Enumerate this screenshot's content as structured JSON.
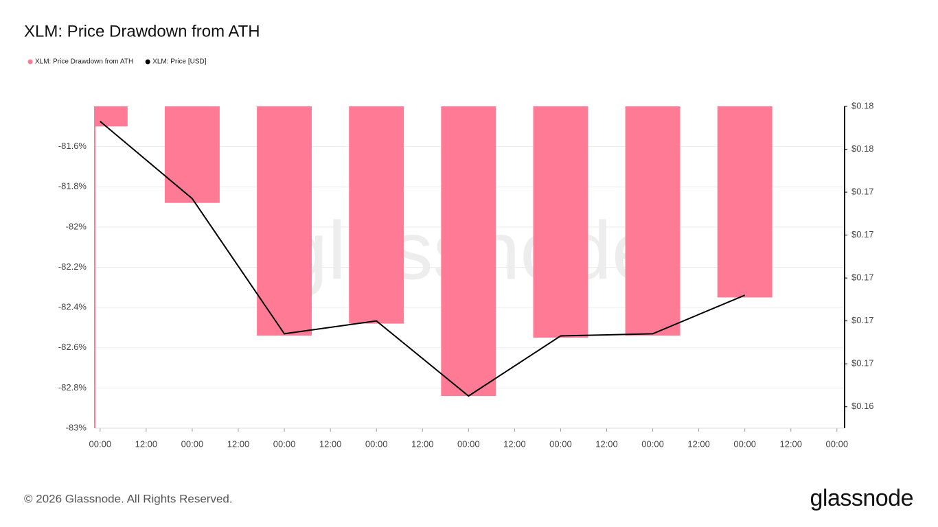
{
  "chart_data": {
    "type": "combo",
    "title": "XLM: Price Drawdown from ATH",
    "watermark": "glassnode",
    "x": [
      0,
      24,
      48,
      72,
      96,
      120,
      144,
      168
    ],
    "xlim": [
      -1.4,
      194
    ],
    "xticks": [
      {
        "value": 0,
        "label": "00:00"
      },
      {
        "value": 12,
        "label": "12:00"
      },
      {
        "value": 24,
        "label": "00:00"
      },
      {
        "value": 36,
        "label": "12:00"
      },
      {
        "value": 48,
        "label": "00:00"
      },
      {
        "value": 60,
        "label": "12:00"
      },
      {
        "value": 72,
        "label": "00:00"
      },
      {
        "value": 84,
        "label": "12:00"
      },
      {
        "value": 96,
        "label": "00:00"
      },
      {
        "value": 108,
        "label": "12:00"
      },
      {
        "value": 120,
        "label": "00:00"
      },
      {
        "value": 132,
        "label": "12:00"
      },
      {
        "value": 144,
        "label": "00:00"
      },
      {
        "value": 156,
        "label": "12:00"
      },
      {
        "value": 168,
        "label": "00:00"
      },
      {
        "value": 180,
        "label": "12:00"
      },
      {
        "value": 192,
        "label": "00:00"
      }
    ],
    "ylim": [
      -83,
      -81.4
    ],
    "yticks": [
      {
        "value": -83,
        "label": "-83%"
      },
      {
        "value": -82.8,
        "label": "-82.8%"
      },
      {
        "value": -82.6,
        "label": "-82.6%"
      },
      {
        "value": -82.4,
        "label": "-82.4%"
      },
      {
        "value": -82.2,
        "label": "-82.2%"
      },
      {
        "value": -82,
        "label": "-82%"
      },
      {
        "value": -81.8,
        "label": "-81.8%"
      },
      {
        "value": -81.6,
        "label": "-81.6%"
      }
    ],
    "y2lim": [
      0.162,
      0.177
    ],
    "y2ticks": [
      {
        "value": 0.163,
        "label": "$0.16"
      },
      {
        "value": 0.165,
        "label": "$0.17"
      },
      {
        "value": 0.167,
        "label": "$0.17"
      },
      {
        "value": 0.169,
        "label": "$0.17"
      },
      {
        "value": 0.171,
        "label": "$0.17"
      },
      {
        "value": 0.173,
        "label": "$0.17"
      },
      {
        "value": 0.175,
        "label": "$0.18"
      },
      {
        "value": 0.177,
        "label": "$0.18"
      }
    ],
    "grid": true,
    "series": [
      {
        "name": "XLM: Price Drawdown from ATH",
        "type": "bar",
        "color": "#ff7a95",
        "values": [
          -81.5,
          -81.88,
          -82.54,
          -82.48,
          -82.84,
          -82.55,
          -82.54,
          -82.35
        ]
      },
      {
        "name": "XLM: Price [USD]",
        "type": "line",
        "axis": "y2",
        "color": "#000000",
        "values": [
          0.1763,
          0.1727,
          0.1664,
          0.167,
          0.1635,
          0.1663,
          0.1664,
          0.1682
        ]
      }
    ]
  },
  "footer": {
    "copyright": "© 2026 Glassnode. All Rights Reserved.",
    "logo": "glassnode"
  }
}
